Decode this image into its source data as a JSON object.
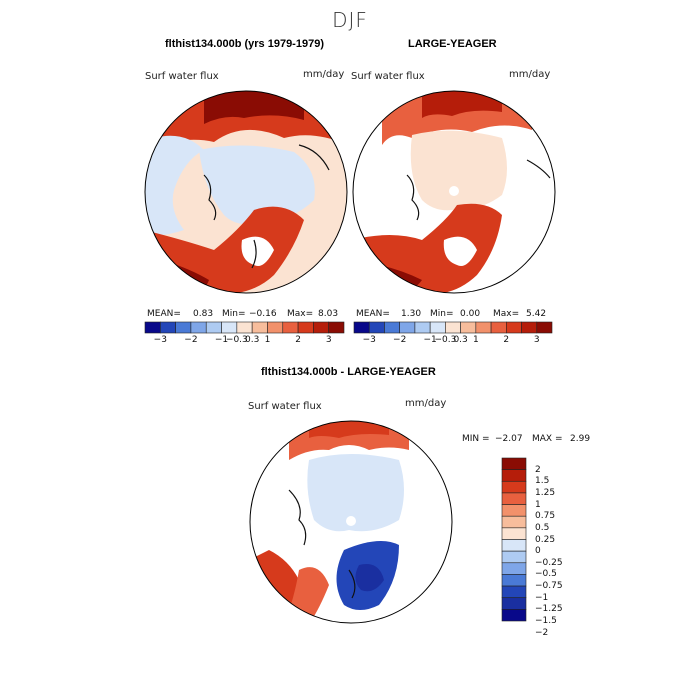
{
  "figure": {
    "season": "DJF"
  },
  "panels": [
    {
      "title": "flthist134.000b (yrs 1979-1979)",
      "variable": "Surf water flux",
      "units": "mm/day",
      "stats": {
        "mean_label": "MEAN=",
        "mean": "0.83",
        "min_label": "Min=",
        "min": "−0.16",
        "max_label": "Max=",
        "max": "8.03"
      }
    },
    {
      "title": "LARGE-YEAGER",
      "variable": "Surf water flux",
      "units": "mm/day",
      "stats": {
        "mean_label": "MEAN=",
        "mean": "1.30",
        "min_label": "Min=",
        "min": "0.00",
        "max_label": "Max=",
        "max": "5.42"
      }
    },
    {
      "title": "flthist134.000b - LARGE-YEAGER",
      "variable": "Surf water flux",
      "units": "mm/day",
      "stats": {
        "min_label": "MIN =",
        "min": "−2.07",
        "max_label": "MAX =",
        "max": "2.99"
      }
    }
  ],
  "colorbar_main": {
    "colors": [
      "#08088a",
      "#2346b8",
      "#4a7ad6",
      "#7fa6e8",
      "#aecbf2",
      "#d8e6f8",
      "#fbe3d2",
      "#f7bd9c",
      "#f2916b",
      "#e8603f",
      "#d63a1c",
      "#b51d0a",
      "#8a0c04"
    ],
    "labels": [
      "−3",
      "−2",
      "−1",
      "−0.3",
      "0.3",
      "1",
      "2",
      "3"
    ]
  },
  "colorbar_diff": {
    "colors": [
      "#8a0c04",
      "#b51d0a",
      "#d63a1c",
      "#e8603f",
      "#f2916b",
      "#f7bd9c",
      "#fbe3d2",
      "#d8e6f8",
      "#aecbf2",
      "#7fa6e8",
      "#4a7ad6",
      "#2346b8",
      "#1a2fa0",
      "#08088a"
    ],
    "labels": [
      "2",
      "1.5",
      "1.25",
      "1",
      "0.75",
      "0.5",
      "0.25",
      "0",
      "−0.25",
      "−0.5",
      "−0.75",
      "−1",
      "−1.25",
      "−1.5",
      "−2"
    ]
  },
  "legend_colors": {
    "land": "#ffffff",
    "ocean_low": "#fbe3d2",
    "sea_ice": "#d8e6f8",
    "high": "#b51d0a",
    "neg": "#2346b8"
  }
}
